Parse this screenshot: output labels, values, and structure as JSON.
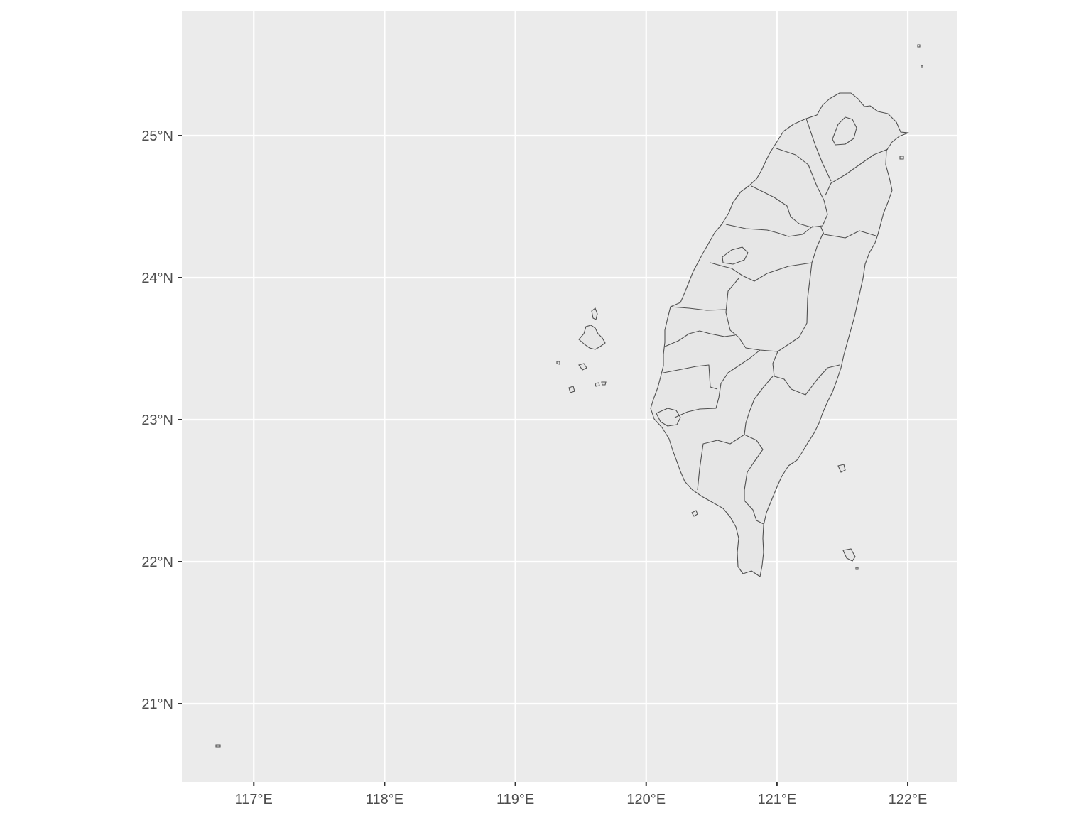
{
  "map": {
    "projection": "longitude-latitude",
    "panel_background": "#EBEBEB",
    "grid_color": "#FFFFFF",
    "land_fill": "#E6E6E6",
    "border_color": "#505050",
    "x_axis": {
      "range": [
        116.45,
        122.38
      ],
      "ticks": [
        117,
        118,
        119,
        120,
        121,
        122
      ],
      "tick_labels": [
        "117°E",
        "118°E",
        "119°E",
        "120°E",
        "121°E",
        "122°E"
      ]
    },
    "y_axis": {
      "range": [
        20.45,
        25.88
      ],
      "ticks": [
        21,
        22,
        23,
        24,
        25
      ],
      "tick_labels": [
        "21°N",
        "22°N",
        "23°N",
        "24°N",
        "25°N"
      ]
    },
    "region": "Taiwan administrative divisions"
  }
}
